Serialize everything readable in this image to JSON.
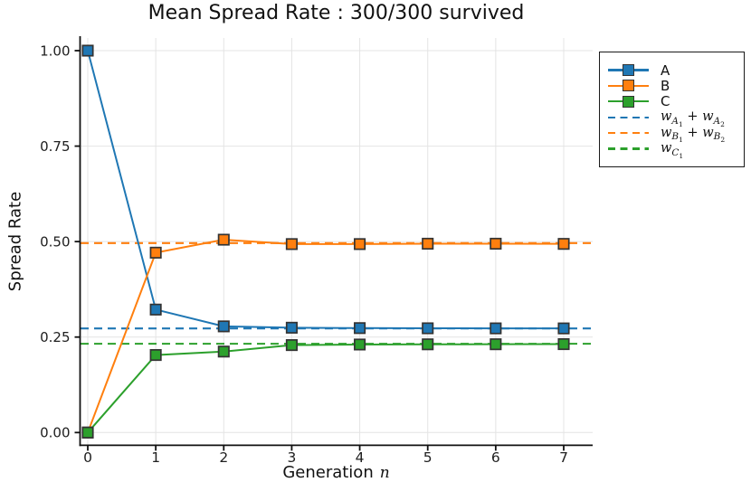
{
  "chart_data": {
    "type": "line",
    "title": "Mean Spread Rate : 300/300 survived",
    "xlabel": "Generation",
    "xlabel_math": "n",
    "ylabel": "Spread Rate",
    "x": [
      0,
      1,
      2,
      3,
      4,
      5,
      6,
      7
    ],
    "xtick_labels": [
      "0",
      "1",
      "2",
      "3",
      "4",
      "5",
      "6",
      "7"
    ],
    "ytick_values": [
      0.0,
      0.25,
      0.5,
      0.75,
      1.0
    ],
    "ytick_labels": [
      "0.00",
      "0.25",
      "0.50",
      "0.75",
      "1.00"
    ],
    "ylim": [
      -0.033,
      1.033
    ],
    "grid": true,
    "legend_position": "outside-top-right",
    "series": [
      {
        "name": "A",
        "color": "#1f77b4",
        "style": "solid",
        "marker": "square",
        "values": [
          1.0,
          0.322,
          0.278,
          0.2745,
          0.2735,
          0.273,
          0.2728,
          0.2727
        ]
      },
      {
        "name": "B",
        "color": "#ff7f0e",
        "style": "solid",
        "marker": "square",
        "values": [
          0.0,
          0.471,
          0.505,
          0.4935,
          0.4935,
          0.4945,
          0.4945,
          0.494
        ]
      },
      {
        "name": "C",
        "color": "#2ca02c",
        "style": "solid",
        "marker": "square",
        "values": [
          0.0,
          0.203,
          0.212,
          0.229,
          0.2305,
          0.231,
          0.2312,
          0.2315
        ]
      }
    ],
    "hlines": [
      {
        "label": "w_{A_1} + w_{A_2}",
        "value": 0.2725,
        "color": "#1f77b4",
        "style": "dashed"
      },
      {
        "label": "w_{B_1} + w_{B_2}",
        "value": 0.496,
        "color": "#ff7f0e",
        "style": "dashed"
      },
      {
        "label": "w_{C_1}",
        "value": 0.2325,
        "color": "#2ca02c",
        "style": "dashed"
      }
    ]
  },
  "colors": {
    "background": "#ffffff",
    "axis": "#111111",
    "grid": "#e4e4e4",
    "tick_text": "#202020",
    "marker_edge": "#333333",
    "legend_border": "#1a1a1a"
  }
}
